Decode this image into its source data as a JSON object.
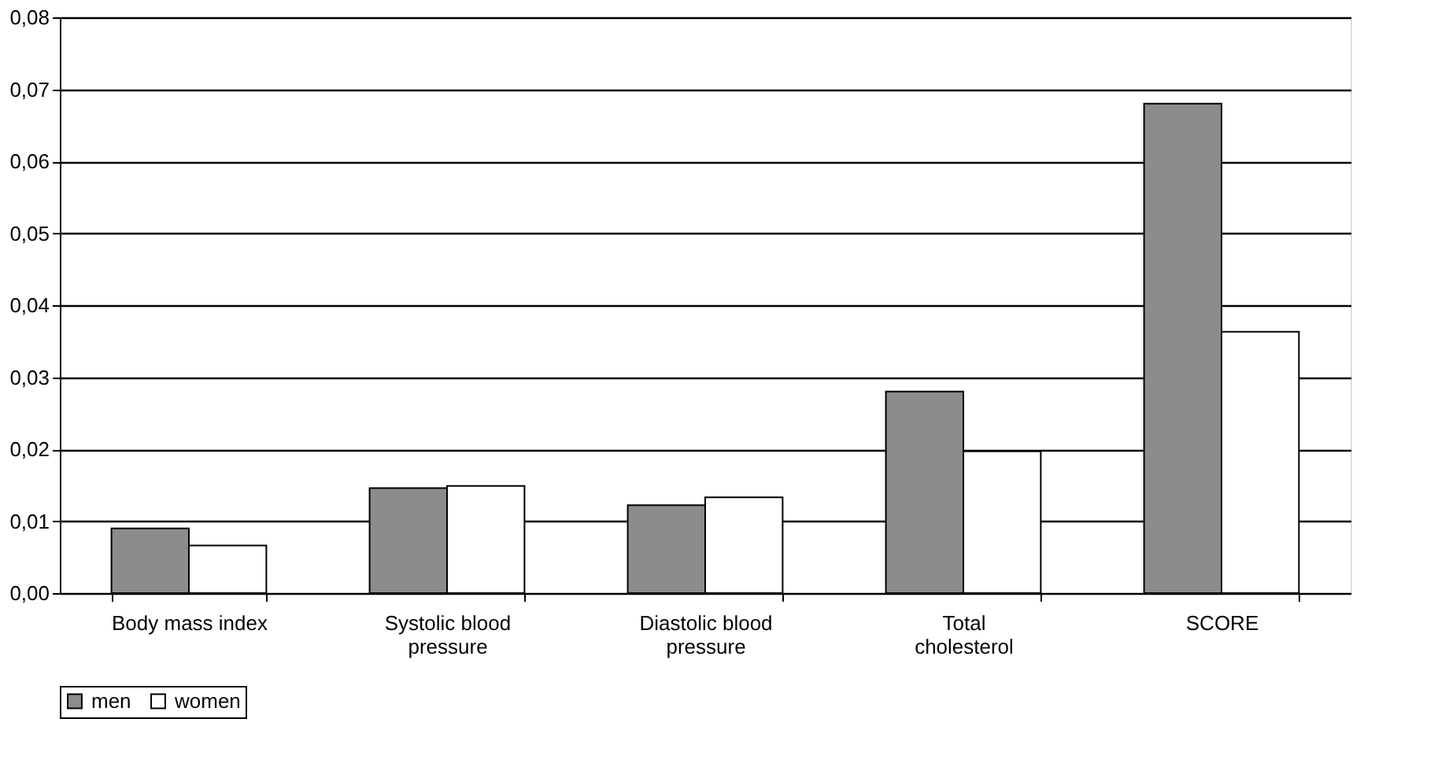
{
  "chart_data": {
    "type": "bar",
    "categories": [
      "Body mass index",
      "Systolic blood pressure",
      "Diastolic blood pressure",
      "Total cholesterol",
      "SCORE"
    ],
    "series": [
      {
        "name": "men",
        "color": "#8c8c8c",
        "values": [
          0.009,
          0.0146,
          0.0122,
          0.028,
          0.068
        ]
      },
      {
        "name": "women",
        "color": "#ffffff",
        "values": [
          0.0066,
          0.0149,
          0.0133,
          0.0197,
          0.0363
        ]
      }
    ],
    "ylim": [
      0,
      0.08
    ],
    "yticks": [
      {
        "value": 0,
        "label": "0,00"
      },
      {
        "value": 0.01,
        "label": "0,01"
      },
      {
        "value": 0.02,
        "label": "0,02"
      },
      {
        "value": 0.03,
        "label": "0,03"
      },
      {
        "value": 0.04,
        "label": "0,04"
      },
      {
        "value": 0.05,
        "label": "0,05"
      },
      {
        "value": 0.06,
        "label": "0,06"
      },
      {
        "value": 0.07,
        "label": "0,07"
      },
      {
        "value": 0.08,
        "label": "0,08"
      }
    ],
    "grid": "y",
    "legend": "bottom"
  }
}
